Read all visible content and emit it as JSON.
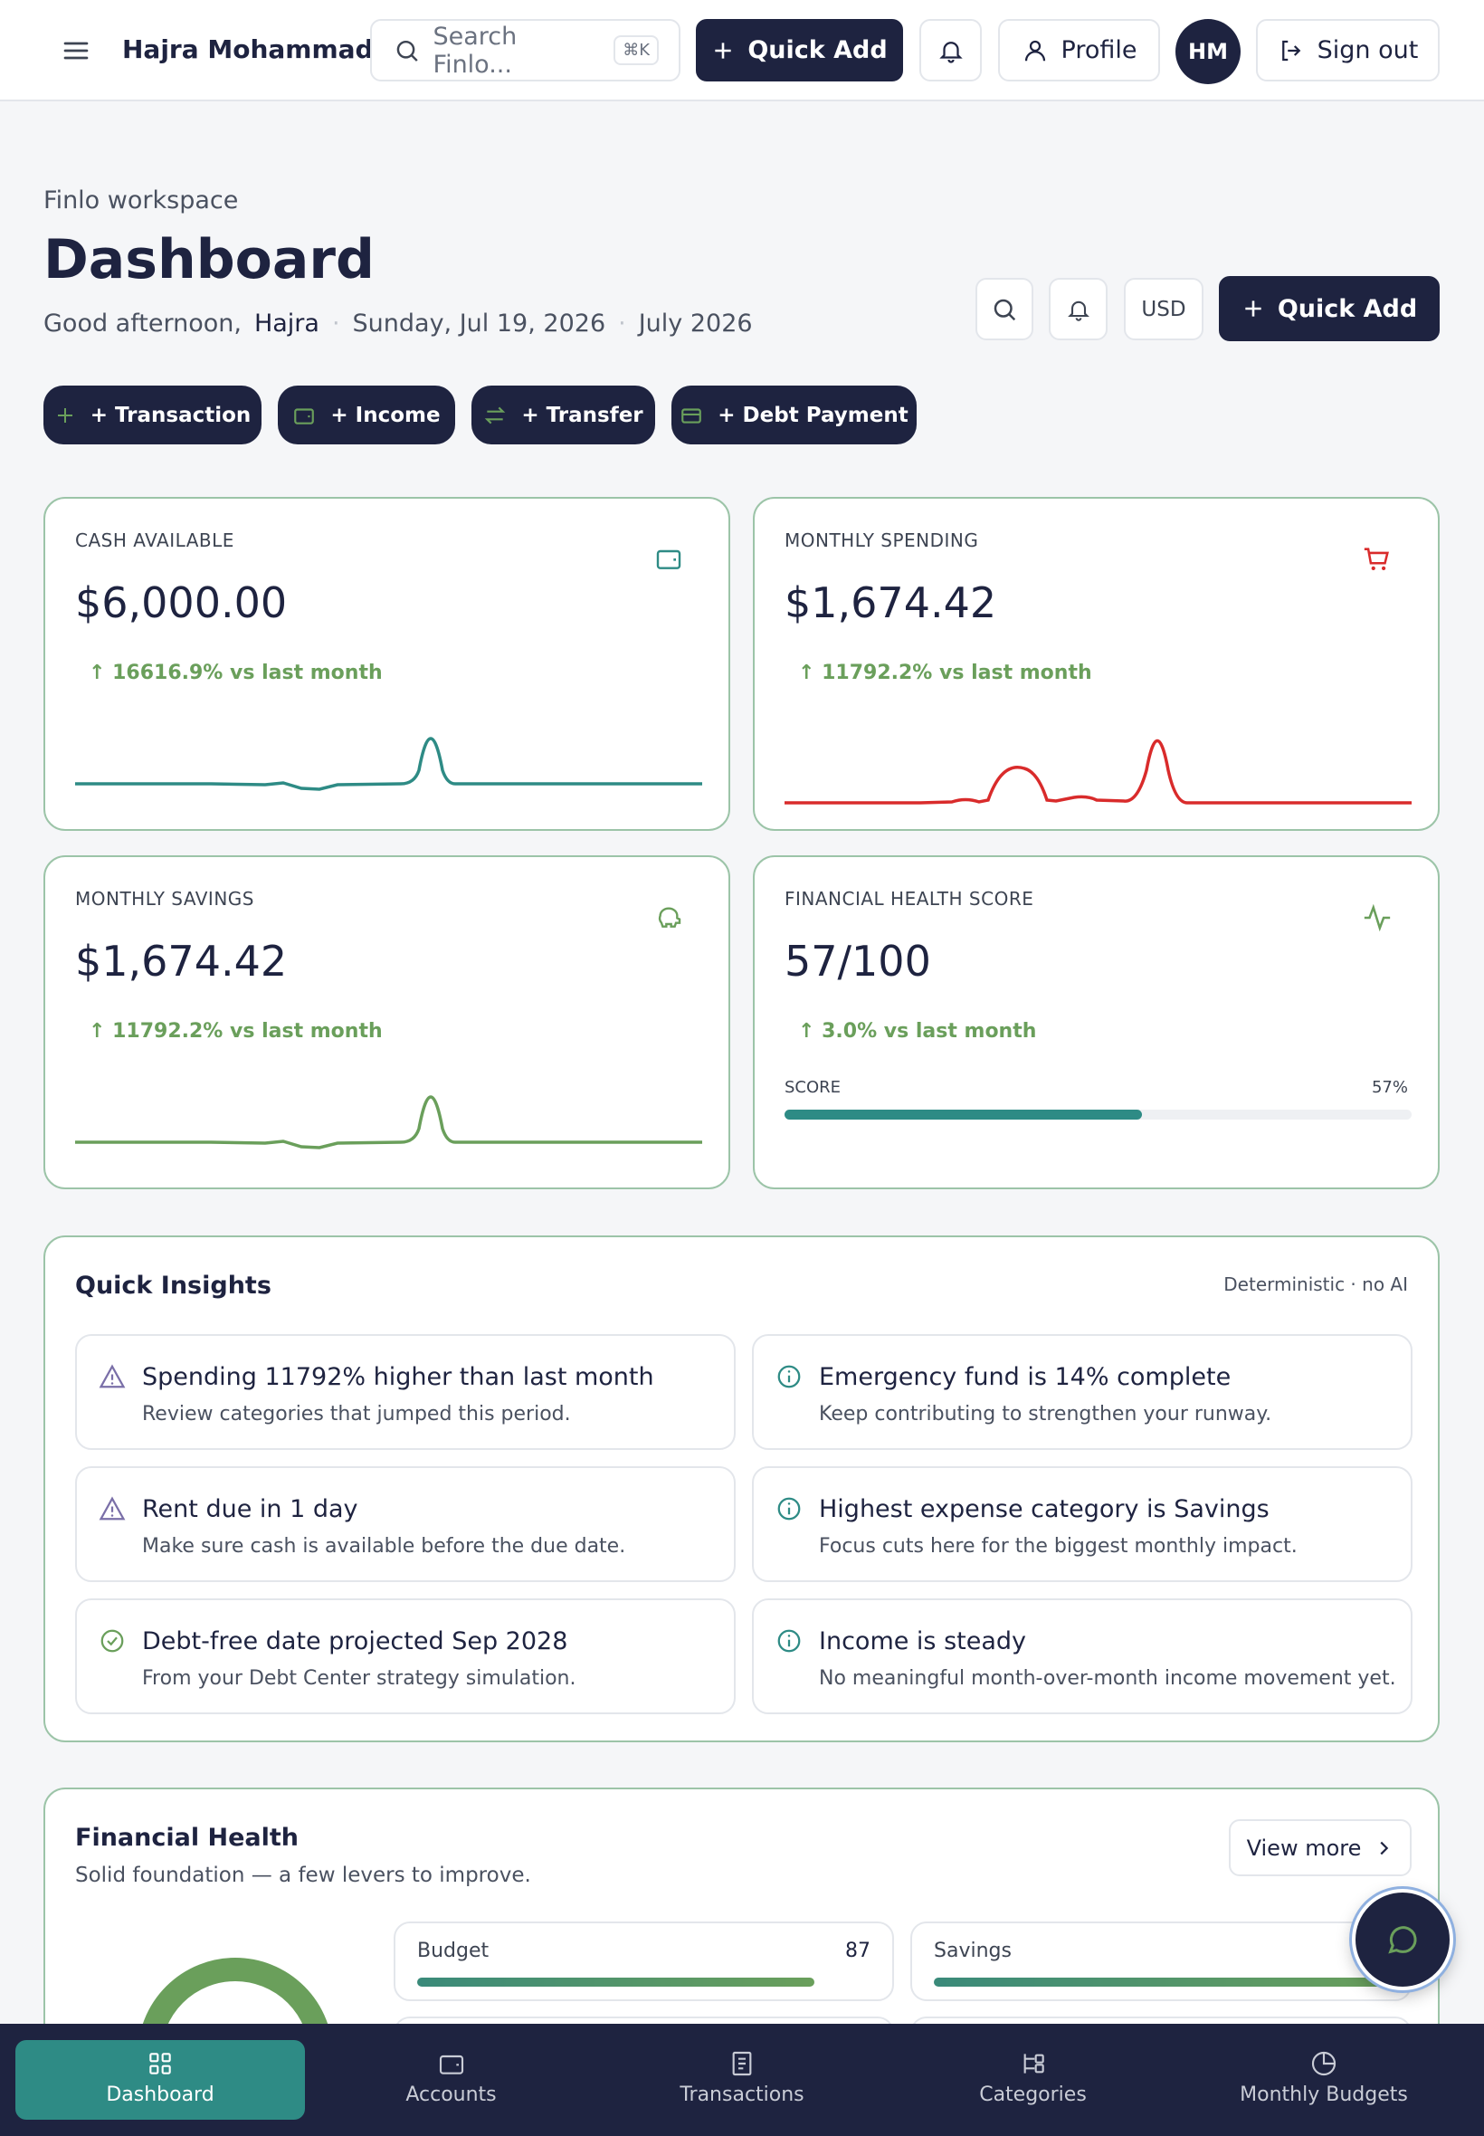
{
  "topbar": {
    "user_name": "Hajra Mohammad...",
    "search_placeholder": "Search Finlo...",
    "shortcut": "⌘K",
    "quick_add": "Quick Add",
    "profile": "Profile",
    "avatar": "HM",
    "sign_out": "Sign out"
  },
  "header": {
    "eyebrow": "Finlo workspace",
    "title": "Dashboard",
    "greeting": "Good afternoon,",
    "greeting_name": "Hajra",
    "date": "Sunday, Jul 19, 2026",
    "period": "July 2026",
    "currency": "USD",
    "quick_add": "Quick Add"
  },
  "actions": [
    "+ Transaction",
    "+ Income",
    "+ Transfer",
    "+ Debt Payment"
  ],
  "metrics": [
    {
      "label": "CASH AVAILABLE",
      "value": "$6,000.00",
      "change": "↑ 16616.9% vs last month"
    },
    {
      "label": "MONTHLY SPENDING",
      "value": "$1,674.42",
      "change": "↑ 11792.2% vs last month"
    },
    {
      "label": "MONTHLY SAVINGS",
      "value": "$1,674.42",
      "change": "↑ 11792.2% vs last month"
    },
    {
      "label": "FINANCIAL HEALTH SCORE",
      "value": "57/100",
      "change": "↑ 3.0% vs last month",
      "score_label": "SCORE",
      "score": {
        "value": 57,
        "label": "57%"
      }
    }
  ],
  "insights": {
    "title": "Quick Insights",
    "note": "Deterministic · no AI",
    "items": [
      {
        "title": "Spending 11792% higher than last month",
        "text": "Review categories that jumped this period."
      },
      {
        "title": "Emergency fund is 14% complete",
        "text": "Keep contributing to strengthen your runway."
      },
      {
        "title": "Rent due in 1 day",
        "text": "Make sure cash is available before the due date."
      },
      {
        "title": "Highest expense category is Savings",
        "text": "Focus cuts here for the biggest monthly impact."
      },
      {
        "title": "Debt-free date projected Sep 2028",
        "text": "From your Debt Center strategy simulation."
      },
      {
        "title": "Income is steady",
        "text": "No meaningful month-over-month income movement yet."
      }
    ]
  },
  "financial_health": {
    "title": "Financial Health",
    "subtitle": "Solid foundation — a few levers to improve.",
    "view_more": "View more",
    "factors": [
      {
        "name": "Budget",
        "value": 87
      },
      {
        "name": "Savings"
      }
    ]
  },
  "nav": [
    "Dashboard",
    "Accounts",
    "Transactions",
    "Categories",
    "Monthly Budgets"
  ]
}
